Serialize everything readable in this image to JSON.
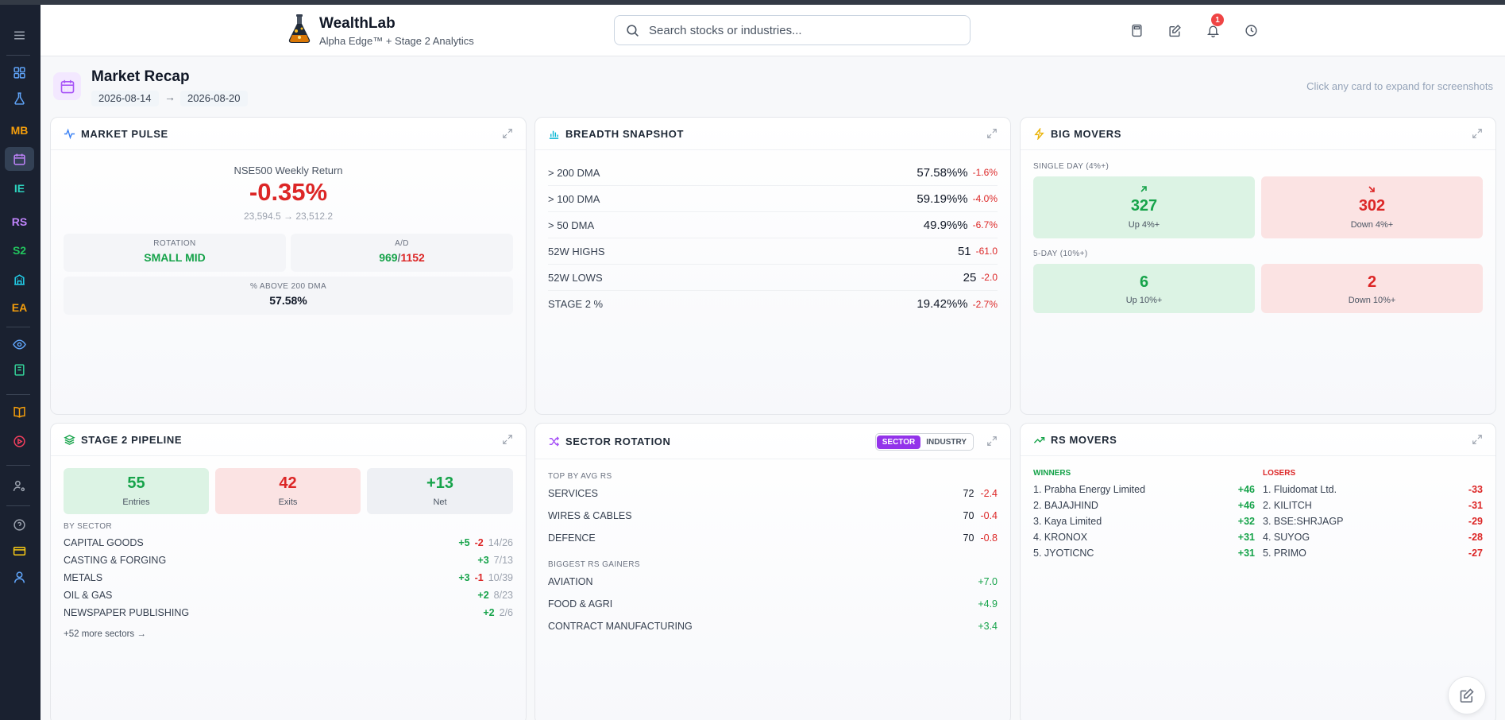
{
  "app": {
    "title": "WealthLab",
    "subtitle": "Alpha Edge™ + Stage 2 Analytics"
  },
  "sidebar": {
    "items": [
      {
        "kind": "icon",
        "icon": "menu-icon"
      },
      {
        "kind": "icon",
        "icon": "grid-icon"
      },
      {
        "kind": "icon",
        "icon": "flask-icon"
      },
      {
        "kind": "text",
        "label": "MB",
        "color": "#f59e0b"
      },
      {
        "kind": "icon",
        "icon": "calendar-icon",
        "active": true
      },
      {
        "kind": "text",
        "label": "IE",
        "color": "#2dd4bf"
      },
      {
        "kind": "text",
        "label": "RS",
        "color": "#c084fc"
      },
      {
        "kind": "text",
        "label": "S2",
        "color": "#22c55e"
      },
      {
        "kind": "icon",
        "icon": "building-icon"
      },
      {
        "kind": "text",
        "label": "EA",
        "color": "#f59e0b"
      },
      {
        "kind": "icon",
        "icon": "eye-icon"
      },
      {
        "kind": "icon",
        "icon": "book-icon"
      },
      {
        "kind": "icon",
        "icon": "open-book-icon"
      },
      {
        "kind": "icon",
        "icon": "play-icon"
      },
      {
        "kind": "icon",
        "icon": "user-settings-icon"
      },
      {
        "kind": "icon",
        "icon": "help-icon"
      },
      {
        "kind": "icon",
        "icon": "card-icon"
      },
      {
        "kind": "icon",
        "icon": "user-icon"
      }
    ]
  },
  "search": {
    "placeholder": "Search stocks or industries..."
  },
  "header_icons": [
    "calculator-icon",
    "edit-icon",
    "bell-icon",
    "clock-icon"
  ],
  "notifications": {
    "count": "1"
  },
  "page": {
    "title": "Market Recap",
    "date_from": "2026-08-14",
    "arrow": "→",
    "date_to": "2026-08-20",
    "hint": "Click any card to expand for screenshots"
  },
  "market_pulse": {
    "title": "MARKET PULSE",
    "return_label": "NSE500 Weekly Return",
    "return_value": "-0.35%",
    "range": "23,594.5 → 23,512.2",
    "rotation_label": "ROTATION",
    "rotation_value": "SMALL MID",
    "ad_label": "A/D",
    "ad_adv": "969",
    "ad_sep": "/",
    "ad_dec": "1152",
    "above200_label": "% ABOVE 200 DMA",
    "above200_value": "57.58%"
  },
  "breadth": {
    "title": "BREADTH SNAPSHOT",
    "rows": [
      {
        "label": "> 200 DMA",
        "value": "57.58%%",
        "change": "-1.6%"
      },
      {
        "label": "> 100 DMA",
        "value": "59.19%%",
        "change": "-4.0%"
      },
      {
        "label": "> 50 DMA",
        "value": "49.9%%",
        "change": "-6.7%"
      },
      {
        "label": "52W HIGHS",
        "value": "51",
        "change": "-61.0"
      },
      {
        "label": "52W LOWS",
        "value": "25",
        "change": "-2.0"
      },
      {
        "label": "STAGE 2 %",
        "value": "19.42%%",
        "change": "-2.7%"
      }
    ]
  },
  "big_movers": {
    "title": "BIG MOVERS",
    "single_label": "SINGLE DAY (4%+)",
    "up4": {
      "value": "327",
      "caption": "Up 4%+"
    },
    "down4": {
      "value": "302",
      "caption": "Down 4%+"
    },
    "five_label": "5-DAY (10%+)",
    "up10": {
      "value": "6",
      "caption": "Up 10%+"
    },
    "down10": {
      "value": "2",
      "caption": "Down 10%+"
    }
  },
  "stage2": {
    "title": "STAGE 2 PIPELINE",
    "entries": {
      "value": "55",
      "caption": "Entries"
    },
    "exits": {
      "value": "42",
      "caption": "Exits"
    },
    "net": {
      "value": "+13",
      "caption": "Net"
    },
    "by_sector_label": "BY SECTOR",
    "sectors": [
      {
        "name": "CAPITAL GOODS",
        "add": "+5",
        "rem": "-2",
        "ratio": "14/26"
      },
      {
        "name": "CASTING & FORGING",
        "add": "+3",
        "rem": "",
        "ratio": "7/13"
      },
      {
        "name": "METALS",
        "add": "+3",
        "rem": "-1",
        "ratio": "10/39"
      },
      {
        "name": "OIL & GAS",
        "add": "+2",
        "rem": "",
        "ratio": "8/23"
      },
      {
        "name": "NEWSPAPER PUBLISHING",
        "add": "+2",
        "rem": "",
        "ratio": "2/6"
      }
    ],
    "more": "+52 more sectors →"
  },
  "sector_rotation": {
    "title": "SECTOR ROTATION",
    "toggle_sector": "SECTOR",
    "toggle_industry": "INDUSTRY",
    "top_label": "TOP BY AVG RS",
    "top": [
      {
        "name": "SERVICES",
        "value": "72",
        "change": "-2.4"
      },
      {
        "name": "WIRES & CABLES",
        "value": "70",
        "change": "-0.4"
      },
      {
        "name": "DEFENCE",
        "value": "70",
        "change": "-0.8"
      }
    ],
    "gainers_label": "BIGGEST RS GAINERS",
    "gainers": [
      {
        "name": "AVIATION",
        "change": "+7.0"
      },
      {
        "name": "FOOD & AGRI",
        "change": "+4.9"
      },
      {
        "name": "CONTRACT MANUFACTURING",
        "change": "+3.4"
      }
    ]
  },
  "rs_movers": {
    "title": "RS MOVERS",
    "winners_label": "WINNERS",
    "losers_label": "LOSERS",
    "winners": [
      {
        "name": "1. Prabha Energy Limited",
        "change": "+46"
      },
      {
        "name": "2. BAJAJHIND",
        "change": "+46"
      },
      {
        "name": "3. Kaya Limited",
        "change": "+32"
      },
      {
        "name": "4. KRONOX",
        "change": "+31"
      },
      {
        "name": "5. JYOTICNC",
        "change": "+31"
      }
    ],
    "losers": [
      {
        "name": "1. Fluidomat Ltd.",
        "change": "-33"
      },
      {
        "name": "2. KILITCH",
        "change": "-31"
      },
      {
        "name": "3. BSE:SHRJAGP",
        "change": "-29"
      },
      {
        "name": "4. SUYOG",
        "change": "-28"
      },
      {
        "name": "5. PRIMO",
        "change": "-27"
      }
    ]
  }
}
